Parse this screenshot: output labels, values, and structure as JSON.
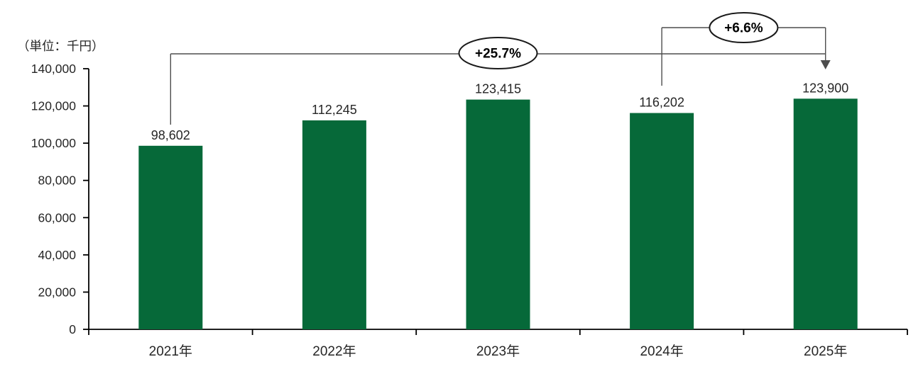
{
  "chart_data": {
    "type": "bar",
    "title": "",
    "unit_label": "（単位：千円）",
    "categories": [
      "2021年",
      "2022年",
      "2023年",
      "2024年",
      "2025年"
    ],
    "values": [
      98602,
      112245,
      123415,
      116202,
      123900
    ],
    "value_labels": [
      "98,602",
      "112,245",
      "123,415",
      "116,202",
      "123,900"
    ],
    "ylim": [
      0,
      140000
    ],
    "ytick_step": 20000,
    "yticks": [
      0,
      20000,
      40000,
      60000,
      80000,
      100000,
      120000,
      140000
    ],
    "ytick_labels": [
      "0",
      "20,000",
      "40,000",
      "60,000",
      "80,000",
      "100,000",
      "120,000",
      "140,000"
    ],
    "grid": false,
    "legend": "none",
    "annotations": [
      {
        "label": "+25.7%",
        "from_category": "2021年",
        "to_category": "2025年"
      },
      {
        "label": "+6.6%",
        "from_category": "2024年",
        "to_category": "2025年"
      }
    ]
  },
  "colors": {
    "bar": "#066939",
    "axis": "#000000",
    "text": "#262626",
    "connector": "#4d4d4d",
    "ellipse_stroke": "#1a1a1a",
    "ellipse_fill": "#ffffff",
    "background": "#ffffff"
  }
}
